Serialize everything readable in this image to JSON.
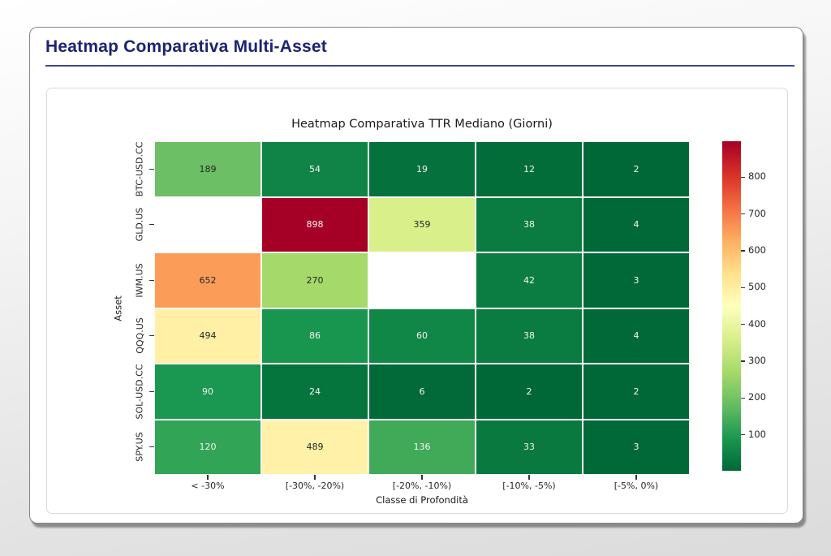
{
  "page": {
    "title": "Heatmap Comparativa Multi-Asset"
  },
  "colors": {
    "title_color": "#1c2473",
    "title_underline": "#3c4795"
  },
  "chart_data": {
    "type": "heatmap",
    "title": "Heatmap Comparativa TTR Mediano (Giorni)",
    "xlabel": "Classe di Profondità",
    "ylabel": "Asset",
    "columns": [
      "< -30%",
      "[-30%, -20%)",
      "[-20%, -10%)",
      "[-10%, -5%)",
      "[-5%, 0%)"
    ],
    "rows": [
      "BTC-USD.CC",
      "GLD.US",
      "IWM.US",
      "QQQ.US",
      "SOL-USD.CC",
      "SPY.US"
    ],
    "values": [
      [
        189,
        54,
        19,
        12,
        2
      ],
      [
        null,
        898,
        359,
        38,
        4
      ],
      [
        652,
        270,
        null,
        42,
        3
      ],
      [
        494,
        86,
        60,
        38,
        4
      ],
      [
        90,
        24,
        6,
        2,
        2
      ],
      [
        120,
        489,
        136,
        33,
        3
      ]
    ],
    "missing_cells_note": "blank cells rendered white",
    "colormap": {
      "name": "RdYlGn_r",
      "vmin": 2,
      "vmax": 898,
      "stops_low_to_high": [
        "#006837",
        "#1a9850",
        "#66bd63",
        "#a6d96a",
        "#d9ef8b",
        "#ffffbf",
        "#fee08b",
        "#fdae61",
        "#f46d43",
        "#d73027",
        "#a50026"
      ]
    },
    "colorbar_ticks": [
      100,
      200,
      300,
      400,
      500,
      600,
      700,
      800
    ],
    "legend_position": "right",
    "grid": false,
    "gridline_color": "#ffffff"
  }
}
